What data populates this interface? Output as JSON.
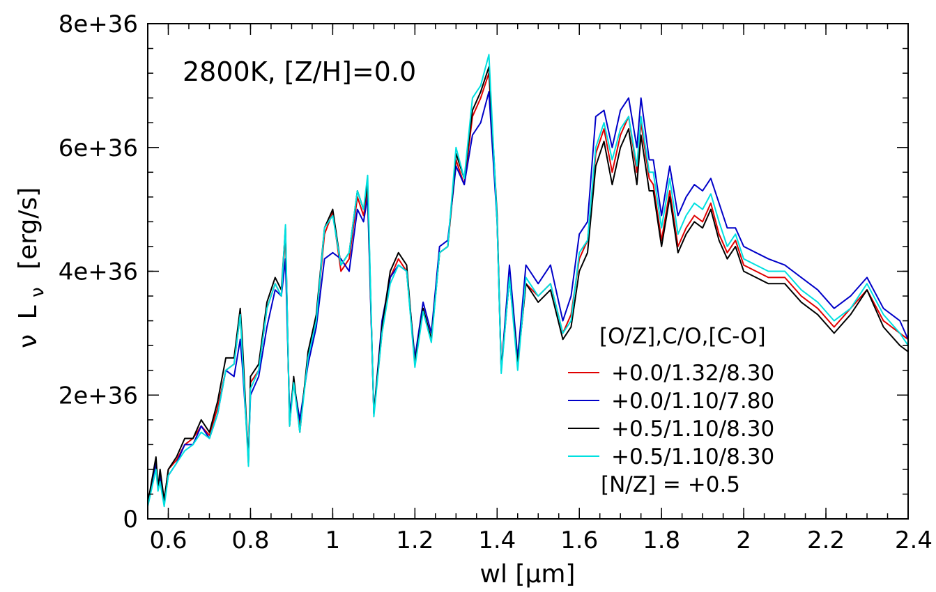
{
  "chart_data": {
    "type": "line",
    "title": "",
    "annotation": "2800K, [Z/H]=0.0",
    "xlabel": "wl [µm]",
    "ylabel_parts": {
      "nu": "ν",
      "L": "L",
      "sub": "ν",
      "unit": "[erg/s]"
    },
    "xlim": [
      0.55,
      2.4
    ],
    "ylim": [
      0,
      8e+36
    ],
    "x_ticks": [
      {
        "v": 0.6,
        "label": "0.6"
      },
      {
        "v": 0.8,
        "label": "0.8"
      },
      {
        "v": 1.0,
        "label": "1"
      },
      {
        "v": 1.2,
        "label": "1.2"
      },
      {
        "v": 1.4,
        "label": "1.4"
      },
      {
        "v": 1.6,
        "label": "1.6"
      },
      {
        "v": 1.8,
        "label": "1.8"
      },
      {
        "v": 2.0,
        "label": "2"
      },
      {
        "v": 2.2,
        "label": "2.2"
      },
      {
        "v": 2.4,
        "label": "2.4"
      }
    ],
    "y_ticks": [
      {
        "v": 0,
        "label": "0"
      },
      {
        "v": 2e+36,
        "label": "2e+36"
      },
      {
        "v": 4e+36,
        "label": "4e+36"
      },
      {
        "v": 6e+36,
        "label": "6e+36"
      },
      {
        "v": 8e+36,
        "label": "8e+36"
      }
    ],
    "x_minor_step": 0.05,
    "y_minor_step": 4e+35,
    "grid": false,
    "legend": {
      "title": "[O/Z],C/O,[C-O]",
      "placement": "lower-right",
      "entries": [
        {
          "label": "+0.0/1.32/8.30",
          "color": "#e00000"
        },
        {
          "label": "+0.0/1.10/7.80",
          "color": "#0000c8"
        },
        {
          "label": "+0.5/1.10/8.30",
          "color": "#000000"
        },
        {
          "label": "+0.5/1.10/8.30",
          "label2": "[N/Z] = +0.5",
          "color": "#00e0e0"
        }
      ]
    },
    "x": [
      0.55,
      0.57,
      0.575,
      0.58,
      0.59,
      0.6,
      0.62,
      0.64,
      0.66,
      0.68,
      0.7,
      0.72,
      0.74,
      0.76,
      0.775,
      0.78,
      0.795,
      0.8,
      0.82,
      0.84,
      0.86,
      0.875,
      0.885,
      0.895,
      0.905,
      0.92,
      0.94,
      0.96,
      0.98,
      1.0,
      1.02,
      1.04,
      1.06,
      1.075,
      1.085,
      1.1,
      1.12,
      1.14,
      1.16,
      1.18,
      1.2,
      1.22,
      1.24,
      1.26,
      1.28,
      1.3,
      1.32,
      1.34,
      1.36,
      1.38,
      1.4,
      1.41,
      1.43,
      1.45,
      1.47,
      1.5,
      1.53,
      1.56,
      1.58,
      1.6,
      1.62,
      1.64,
      1.66,
      1.68,
      1.7,
      1.72,
      1.74,
      1.75,
      1.77,
      1.78,
      1.8,
      1.82,
      1.84,
      1.86,
      1.88,
      1.9,
      1.92,
      1.94,
      1.96,
      1.98,
      2.0,
      2.03,
      2.06,
      2.1,
      2.14,
      2.18,
      2.22,
      2.26,
      2.3,
      2.34,
      2.38,
      2.4
    ],
    "series": [
      {
        "color": "#e00000",
        "values": [
          0.25,
          0.9,
          0.5,
          0.7,
          0.3,
          0.8,
          0.95,
          1.2,
          1.3,
          1.5,
          1.35,
          1.8,
          2.4,
          2.5,
          3.3,
          2.8,
          0.9,
          2.2,
          2.4,
          3.4,
          3.8,
          3.6,
          4.6,
          1.6,
          2.2,
          1.5,
          2.6,
          3.2,
          4.6,
          4.95,
          4.0,
          4.2,
          5.2,
          4.9,
          5.3,
          1.7,
          3.0,
          3.9,
          4.2,
          4.0,
          2.5,
          3.4,
          2.9,
          4.3,
          4.4,
          5.8,
          5.4,
          6.5,
          6.8,
          7.2,
          4.8,
          2.4,
          3.9,
          2.5,
          3.8,
          3.6,
          3.8,
          3.0,
          3.3,
          4.2,
          4.5,
          5.9,
          6.3,
          5.6,
          6.2,
          6.5,
          5.6,
          6.4,
          5.5,
          5.4,
          4.5,
          5.3,
          4.4,
          4.7,
          4.9,
          4.8,
          5.1,
          4.6,
          4.3,
          4.5,
          4.1,
          4.0,
          3.9,
          3.9,
          3.6,
          3.4,
          3.1,
          3.4,
          3.7,
          3.2,
          3.0,
          2.9
        ]
      },
      {
        "color": "#0000c8",
        "values": [
          0.25,
          0.9,
          0.5,
          0.7,
          0.25,
          0.7,
          0.9,
          1.2,
          1.2,
          1.5,
          1.3,
          1.7,
          2.4,
          2.3,
          2.9,
          2.5,
          1.0,
          2.0,
          2.3,
          3.1,
          3.7,
          3.6,
          4.2,
          1.7,
          2.2,
          1.6,
          2.5,
          3.1,
          4.2,
          4.3,
          4.2,
          4.0,
          5.0,
          4.8,
          5.2,
          1.7,
          3.2,
          3.9,
          4.1,
          4.0,
          2.6,
          3.5,
          3.0,
          4.4,
          4.5,
          5.7,
          5.4,
          6.2,
          6.4,
          6.9,
          4.8,
          2.4,
          4.1,
          2.6,
          4.1,
          3.8,
          4.1,
          3.2,
          3.6,
          4.6,
          4.8,
          6.5,
          6.6,
          6.0,
          6.6,
          6.8,
          6.0,
          6.8,
          5.8,
          5.8,
          4.9,
          5.7,
          4.9,
          5.2,
          5.4,
          5.3,
          5.5,
          5.1,
          4.7,
          4.7,
          4.4,
          4.3,
          4.2,
          4.1,
          3.9,
          3.7,
          3.4,
          3.6,
          3.9,
          3.4,
          3.2,
          2.9
        ]
      },
      {
        "color": "#000000",
        "values": [
          0.25,
          1.0,
          0.5,
          0.8,
          0.3,
          0.8,
          1.0,
          1.3,
          1.3,
          1.6,
          1.4,
          1.9,
          2.6,
          2.6,
          3.4,
          2.9,
          0.9,
          2.3,
          2.5,
          3.5,
          3.9,
          3.7,
          4.7,
          1.5,
          2.3,
          1.4,
          2.7,
          3.3,
          4.7,
          5.0,
          4.1,
          4.3,
          5.3,
          5.0,
          5.4,
          1.7,
          3.1,
          4.0,
          4.3,
          4.1,
          2.5,
          3.4,
          2.9,
          4.3,
          4.4,
          5.9,
          5.5,
          6.6,
          6.9,
          7.3,
          4.9,
          2.4,
          3.9,
          2.5,
          3.8,
          3.5,
          3.7,
          2.9,
          3.1,
          4.0,
          4.3,
          5.7,
          6.1,
          5.4,
          6.0,
          6.3,
          5.4,
          6.2,
          5.3,
          5.3,
          4.4,
          5.2,
          4.3,
          4.6,
          4.8,
          4.7,
          5.0,
          4.5,
          4.2,
          4.4,
          4.0,
          3.9,
          3.8,
          3.8,
          3.5,
          3.3,
          3.0,
          3.3,
          3.7,
          3.1,
          2.8,
          2.7
        ]
      },
      {
        "color": "#00e0e0",
        "values": [
          0.2,
          0.8,
          0.45,
          0.6,
          0.2,
          0.7,
          0.9,
          1.1,
          1.2,
          1.4,
          1.3,
          1.7,
          2.4,
          2.5,
          3.3,
          2.7,
          0.85,
          2.1,
          2.4,
          3.4,
          3.8,
          3.6,
          4.75,
          1.5,
          2.2,
          1.4,
          2.6,
          3.2,
          4.7,
          4.9,
          4.1,
          4.3,
          5.3,
          5.0,
          5.55,
          1.65,
          3.0,
          3.8,
          4.1,
          4.0,
          2.45,
          3.35,
          2.85,
          4.3,
          4.4,
          6.0,
          5.5,
          6.8,
          7.0,
          7.5,
          4.8,
          2.35,
          3.9,
          2.4,
          3.9,
          3.6,
          3.8,
          3.0,
          3.2,
          4.3,
          4.5,
          6.0,
          6.4,
          5.8,
          6.3,
          6.5,
          5.7,
          6.5,
          5.6,
          5.6,
          4.7,
          5.5,
          4.6,
          4.9,
          5.1,
          5.0,
          5.25,
          4.8,
          4.4,
          4.6,
          4.2,
          4.1,
          4.0,
          4.0,
          3.7,
          3.5,
          3.2,
          3.4,
          3.8,
          3.3,
          3.0,
          2.8
        ]
      }
    ],
    "value_scale": 1e+36
  }
}
